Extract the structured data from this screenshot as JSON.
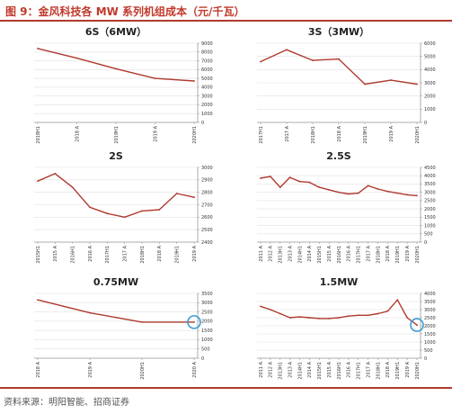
{
  "figure": {
    "title": "图 9：金风科技各 MW 系列机组成本（元/千瓦）",
    "source": "资料来源：明阳智能、招商证券"
  },
  "colors": {
    "line": "#b03a2e",
    "axis": "#999999",
    "grid": "#e0e0e0",
    "highlight": "#3a9bd5"
  },
  "chart_data": [
    {
      "type": "line",
      "title": "6S（6MW）",
      "categories": [
        "2018H1",
        "2018 A",
        "2019H1",
        "2019 A",
        "2020H1"
      ],
      "values": [
        8400,
        7300,
        6100,
        5000,
        4700
      ],
      "ylim": [
        0,
        9000
      ],
      "ystep": 1000,
      "highlight": null
    },
    {
      "type": "line",
      "title": "3S（3MW）",
      "categories": [
        "2017H1",
        "2017 A",
        "2018H1",
        "2018 A",
        "2019H1",
        "2019 A",
        "2020H1"
      ],
      "values": [
        4600,
        5500,
        4700,
        4800,
        2900,
        3200,
        2900
      ],
      "ylim": [
        0,
        6000
      ],
      "ystep": 1000,
      "highlight": null
    },
    {
      "type": "line",
      "title": "2S",
      "categories": [
        "2015H1",
        "2015 A",
        "2016H1",
        "2016 A",
        "2017H1",
        "2017 A",
        "2018H1",
        "2018 A",
        "2019H1",
        "2019 A"
      ],
      "values": [
        2890,
        2950,
        2840,
        2680,
        2630,
        2600,
        2650,
        2660,
        2790,
        2760
      ],
      "ylim": [
        2400,
        3000
      ],
      "ystep": 100,
      "highlight": null
    },
    {
      "type": "line",
      "title": "2.5S",
      "categories": [
        "2011 A",
        "2012 A",
        "2013H1",
        "2013 A",
        "2014H1",
        "2014 A",
        "2015H1",
        "2015 A",
        "2016H1",
        "2016 A",
        "2017H1",
        "2017 A",
        "2018H1",
        "2018 A",
        "2019H1",
        "2019 A",
        "2020H1"
      ],
      "values": [
        3850,
        3950,
        3300,
        3900,
        3650,
        3600,
        3300,
        3150,
        3000,
        2900,
        2950,
        3400,
        3200,
        3050,
        2950,
        2850,
        2800
      ],
      "ylim": [
        0,
        4500
      ],
      "ystep": 500,
      "highlight": null
    },
    {
      "type": "line",
      "title": "0.75MW",
      "categories": [
        "2018 A",
        "2019 A",
        "2020H1",
        "2020 A"
      ],
      "values": [
        3150,
        2450,
        1950,
        1950
      ],
      "ylim": [
        0,
        3500
      ],
      "ystep": 500,
      "highlight": 3
    },
    {
      "type": "line",
      "title": "1.5MW",
      "categories": [
        "2011 A",
        "2012 A",
        "2013H1",
        "2013 A",
        "2014H1",
        "2014 A",
        "2015H1",
        "2015 A",
        "2016H1",
        "2016 A",
        "2017H1",
        "2017 A",
        "2018H1",
        "2018 A",
        "2019H1",
        "2019 A",
        "2020H1"
      ],
      "values": [
        3200,
        3000,
        2750,
        2500,
        2550,
        2500,
        2450,
        2450,
        2500,
        2600,
        2650,
        2650,
        2750,
        2900,
        3600,
        2500,
        2050
      ],
      "ylim": [
        0,
        4000
      ],
      "ystep": 500,
      "highlight": 16
    }
  ]
}
